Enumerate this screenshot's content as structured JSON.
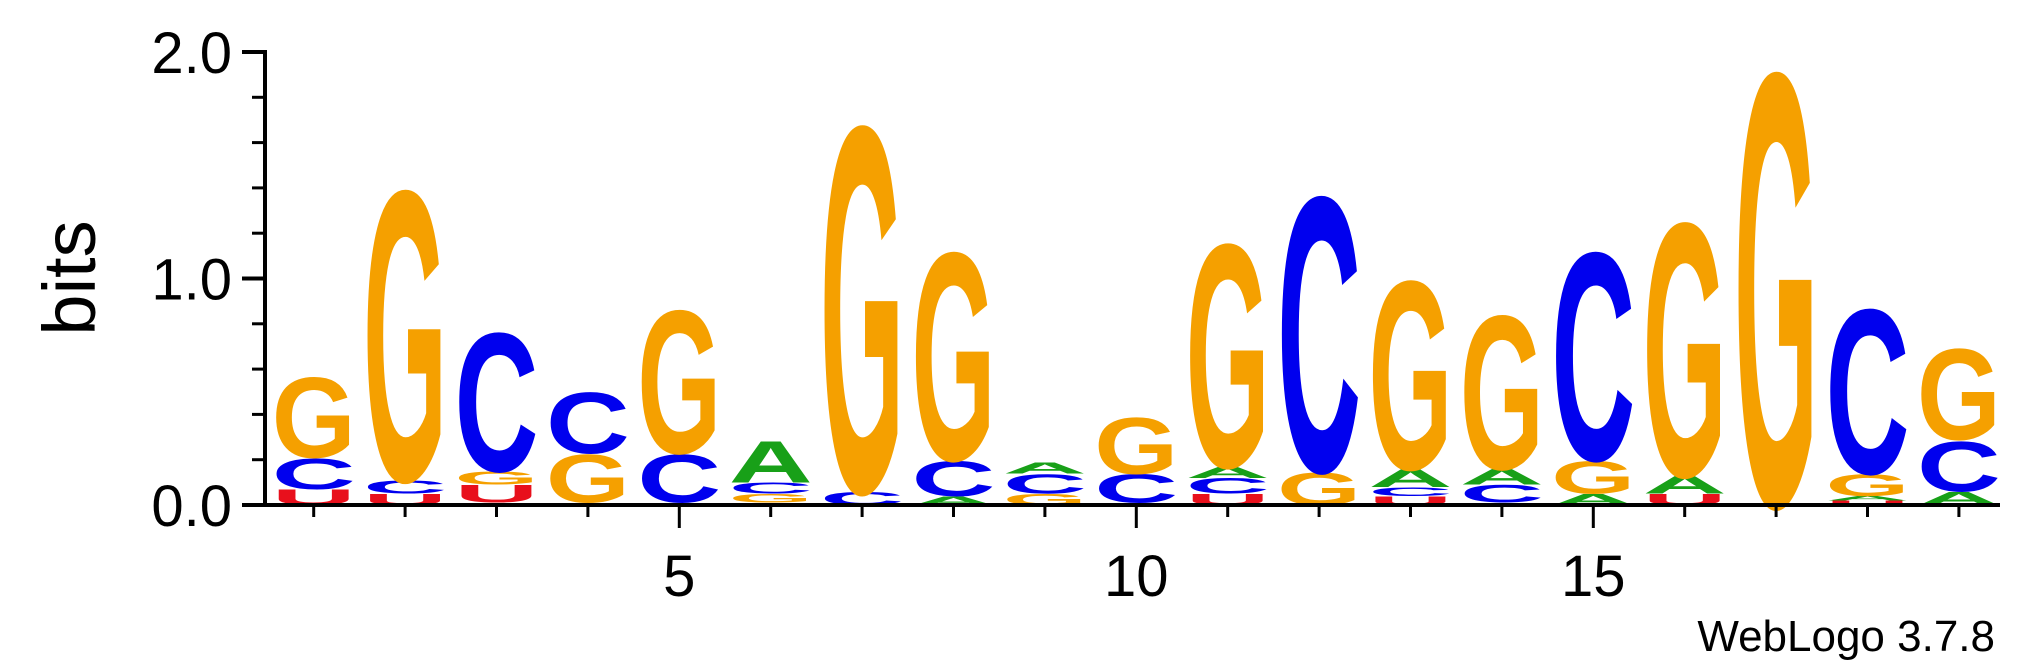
{
  "chart_data": {
    "type": "sequence-logo",
    "ylabel": "bits",
    "ylim": [
      0,
      2.0
    ],
    "y_ticks": [
      "0.0",
      "1.0",
      "2.0"
    ],
    "x_ticks": [
      "5",
      "10",
      "15"
    ],
    "alphabet_colors": {
      "A": "#18a018",
      "C": "#0000ee",
      "G": "#f5a000",
      "U": "#e8101c"
    },
    "positions": [
      {
        "pos": 1,
        "letters": [
          [
            "U",
            0.07
          ],
          [
            "C",
            0.14
          ],
          [
            "G",
            0.37
          ]
        ]
      },
      {
        "pos": 2,
        "letters": [
          [
            "U",
            0.05
          ],
          [
            "C",
            0.06
          ],
          [
            "G",
            1.34
          ]
        ]
      },
      {
        "pos": 3,
        "letters": [
          [
            "A",
            0.01
          ],
          [
            "U",
            0.08
          ],
          [
            "G",
            0.06
          ],
          [
            "C",
            0.64
          ]
        ]
      },
      {
        "pos": 4,
        "letters": [
          [
            "C",
            0.01
          ],
          [
            "G",
            0.22
          ],
          [
            "C",
            0.28
          ]
        ]
      },
      {
        "pos": 5,
        "letters": [
          [
            "A",
            0.01
          ],
          [
            "C",
            0.22
          ],
          [
            "G",
            0.66
          ]
        ]
      },
      {
        "pos": 6,
        "letters": [
          [
            "U",
            0.01
          ],
          [
            "G",
            0.04
          ],
          [
            "C",
            0.05
          ],
          [
            "A",
            0.19
          ]
        ]
      },
      {
        "pos": 7,
        "letters": [
          [
            "C",
            0.06
          ],
          [
            "G",
            1.69
          ]
        ]
      },
      {
        "pos": 8,
        "letters": [
          [
            "A",
            0.04
          ],
          [
            "C",
            0.16
          ],
          [
            "G",
            0.96
          ]
        ]
      },
      {
        "pos": 9,
        "letters": [
          [
            "G",
            0.05
          ],
          [
            "C",
            0.09
          ],
          [
            "A",
            0.05
          ]
        ]
      },
      {
        "pos": 10,
        "letters": [
          [
            "U",
            0.01
          ],
          [
            "C",
            0.13
          ],
          [
            "G",
            0.26
          ]
        ]
      },
      {
        "pos": 11,
        "letters": [
          [
            "U",
            0.05
          ],
          [
            "C",
            0.07
          ],
          [
            "A",
            0.05
          ],
          [
            "G",
            1.03
          ]
        ]
      },
      {
        "pos": 12,
        "letters": [
          [
            "G",
            0.15
          ],
          [
            "C",
            1.27
          ]
        ]
      },
      {
        "pos": 13,
        "letters": [
          [
            "U",
            0.04
          ],
          [
            "C",
            0.04
          ],
          [
            "A",
            0.08
          ],
          [
            "G",
            0.87
          ]
        ]
      },
      {
        "pos": 14,
        "letters": [
          [
            "U",
            0.01
          ],
          [
            "C",
            0.08
          ],
          [
            "A",
            0.07
          ],
          [
            "G",
            0.71
          ]
        ]
      },
      {
        "pos": 15,
        "letters": [
          [
            "A",
            0.05
          ],
          [
            "G",
            0.15
          ],
          [
            "C",
            0.96
          ]
        ]
      },
      {
        "pos": 16,
        "letters": [
          [
            "U",
            0.05
          ],
          [
            "A",
            0.08
          ],
          [
            "G",
            1.17
          ]
        ]
      },
      {
        "pos": 17,
        "letters": [
          [
            "G",
            2.0
          ]
        ]
      },
      {
        "pos": 18,
        "letters": [
          [
            "U",
            0.02
          ],
          [
            "A",
            0.02
          ],
          [
            "G",
            0.1
          ],
          [
            "C",
            0.76
          ]
        ]
      },
      {
        "pos": 19,
        "letters": [
          [
            "A",
            0.06
          ],
          [
            "C",
            0.23
          ],
          [
            "G",
            0.42
          ]
        ]
      }
    ]
  },
  "credit": "WebLogo 3.7.8"
}
